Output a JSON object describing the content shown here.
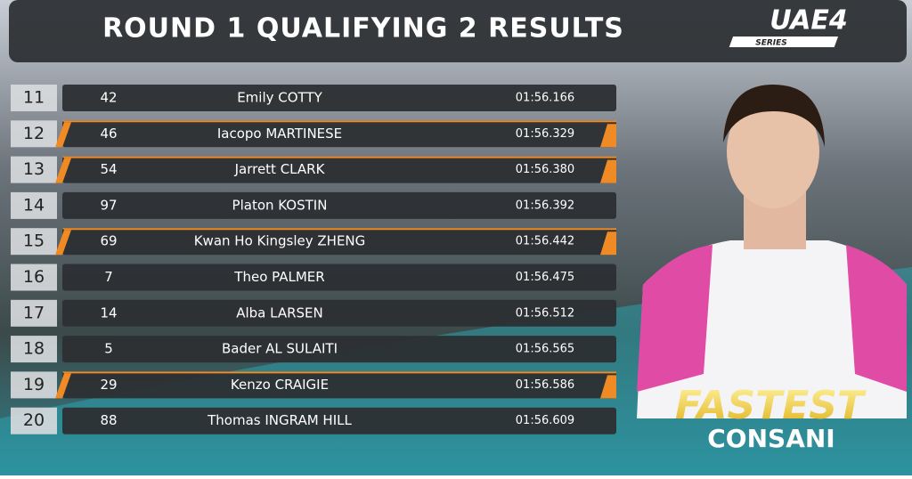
{
  "header": {
    "title": "ROUND 1 QUALIFYING 2 RESULTS",
    "logo": "UAE4",
    "logo_sub": "SERIES"
  },
  "table": {
    "accent_color": "#f08a24",
    "rows": [
      {
        "position": "11",
        "number": "42",
        "name": "Emily COTTY",
        "time": "01:56.166",
        "accent": false
      },
      {
        "position": "12",
        "number": "46",
        "name": "Iacopo MARTINESE",
        "time": "01:56.329",
        "accent": true
      },
      {
        "position": "13",
        "number": "54",
        "name": "Jarrett CLARK",
        "time": "01:56.380",
        "accent": true
      },
      {
        "position": "14",
        "number": "97",
        "name": "Platon KOSTIN",
        "time": "01:56.392",
        "accent": false
      },
      {
        "position": "15",
        "number": "69",
        "name": "Kwan Ho Kingsley ZHENG",
        "time": "01:56.442",
        "accent": true
      },
      {
        "position": "16",
        "number": "7",
        "name": "Theo PALMER",
        "time": "01:56.475",
        "accent": false
      },
      {
        "position": "17",
        "number": "14",
        "name": "Alba LARSEN",
        "time": "01:56.512",
        "accent": false
      },
      {
        "position": "18",
        "number": "5",
        "name": "Bader AL SULAITI",
        "time": "01:56.565",
        "accent": false
      },
      {
        "position": "19",
        "number": "29",
        "name": "Kenzo CRAIGIE",
        "time": "01:56.586",
        "accent": true
      },
      {
        "position": "20",
        "number": "88",
        "name": "Thomas INGRAM HILL",
        "time": "01:56.609",
        "accent": false
      }
    ]
  },
  "fastest": {
    "label": "FASTEST",
    "driver": "CONSANI"
  }
}
